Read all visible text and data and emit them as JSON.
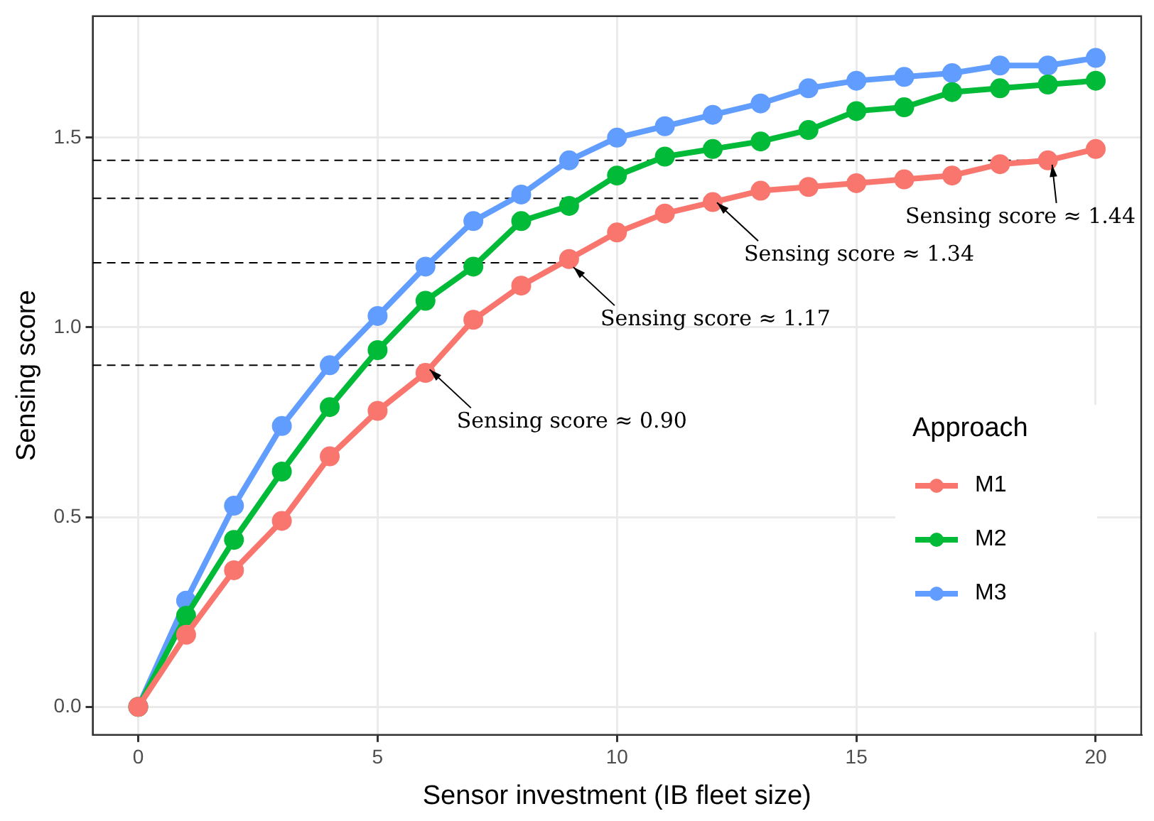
{
  "chart_data": {
    "type": "line",
    "xlabel": "Sensor investment (IB fleet size)",
    "ylabel": "Sensing score",
    "legend_title": "Approach",
    "x": [
      0,
      1,
      2,
      3,
      4,
      5,
      6,
      7,
      8,
      9,
      10,
      11,
      12,
      13,
      14,
      15,
      16,
      17,
      18,
      19,
      20
    ],
    "series": [
      {
        "name": "M1",
        "color": "#f8766d",
        "values": [
          0,
          0.19,
          0.36,
          0.49,
          0.66,
          0.78,
          0.88,
          1.02,
          1.11,
          1.18,
          1.25,
          1.3,
          1.33,
          1.36,
          1.37,
          1.38,
          1.39,
          1.4,
          1.43,
          1.44,
          1.47
        ]
      },
      {
        "name": "M2",
        "color": "#00ba38",
        "values": [
          0,
          0.24,
          0.44,
          0.62,
          0.79,
          0.94,
          1.07,
          1.16,
          1.28,
          1.32,
          1.4,
          1.45,
          1.47,
          1.49,
          1.52,
          1.57,
          1.58,
          1.62,
          1.63,
          1.64,
          1.65
        ]
      },
      {
        "name": "M3",
        "color": "#619cff",
        "values": [
          0,
          0.28,
          0.53,
          0.74,
          0.9,
          1.03,
          1.16,
          1.28,
          1.35,
          1.44,
          1.5,
          1.53,
          1.56,
          1.59,
          1.63,
          1.65,
          1.66,
          1.67,
          1.69,
          1.69,
          1.71
        ]
      }
    ],
    "xlim": [
      -0.95,
      20.95
    ],
    "xticks": [
      0,
      5,
      10,
      15,
      20
    ],
    "ylim": [
      -0.074,
      1.82
    ],
    "yticks": [
      {
        "value": 0,
        "label": "0.0"
      },
      {
        "value": 0.5,
        "label": "0.5"
      },
      {
        "value": 1,
        "label": "1.0"
      },
      {
        "value": 1.5,
        "label": "1.5"
      }
    ],
    "ref_lines": [
      {
        "axis": "y",
        "value": 0.9,
        "line_style": "dashed",
        "color": "#000000"
      },
      {
        "axis": "y",
        "value": 1.17,
        "line_style": "dashed",
        "color": "#000000"
      },
      {
        "axis": "y",
        "value": 1.34,
        "line_style": "dashed",
        "color": "#000000"
      },
      {
        "axis": "y",
        "value": 1.44,
        "line_style": "dashed",
        "color": "#000000"
      }
    ],
    "annotations": [
      {
        "text": "Sensing score ≈ 0.90",
        "x": 6,
        "y": 0.9
      },
      {
        "text": "Sensing score ≈ 1.17",
        "x": 9,
        "y": 1.17
      },
      {
        "text": "Sensing score ≈ 1.34",
        "x": 12,
        "y": 1.34
      },
      {
        "text": "Sensing score ≈ 1.44",
        "x": 19,
        "y": 1.44
      }
    ],
    "grid": true,
    "legend": "right",
    "marker": "circle",
    "line_style": "solid"
  }
}
